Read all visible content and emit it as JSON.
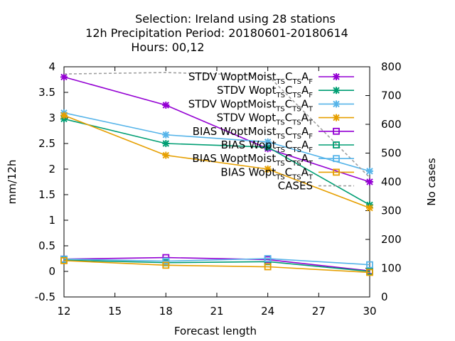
{
  "chart_data": {
    "type": "line",
    "title_lines": [
      "Selection: Ireland using    28 stations",
      "12h Precipitation    Period: 20180601-20180614",
      "Hours:  00,12"
    ],
    "xlabel": "Forecast length",
    "ylabel": "mm/12h",
    "y2label": "No cases",
    "xlim": [
      12,
      30
    ],
    "ylim": [
      -0.5,
      4
    ],
    "y2lim": [
      0,
      800
    ],
    "xticks": [
      "12",
      "15",
      "18",
      "21",
      "24",
      "27",
      "30"
    ],
    "yticks": [
      "-0.5",
      "0",
      "0.5",
      "1",
      "1.5",
      "2",
      "2.5",
      "3",
      "3.5",
      "4"
    ],
    "y2ticks": [
      "0",
      "100",
      "200",
      "300",
      "400",
      "500",
      "600",
      "700",
      "800"
    ],
    "legend_position": "top-right",
    "x": [
      12,
      18,
      24,
      30
    ],
    "series": [
      {
        "label_main": "STDV WoptMoist",
        "sub1": "TS",
        "mid": "C",
        "sub2": "TS",
        "tail": "A",
        "sub3": "F",
        "color": "#9400d3",
        "marker": "x",
        "dash": false,
        "axis": "y",
        "values": [
          3.8,
          3.25,
          2.4,
          1.75
        ]
      },
      {
        "label_main": "STDV Wopt",
        "sub1": "TS",
        "mid": "C",
        "sub2": "TS",
        "tail": "A",
        "sub3": "F",
        "color": "#009e73",
        "marker": "x",
        "dash": false,
        "axis": "y",
        "values": [
          2.98,
          2.5,
          2.43,
          1.3
        ]
      },
      {
        "label_main": "STDV WoptMoist",
        "sub1": "TS",
        "mid": "C",
        "sub2": "TS",
        "tail": "A",
        "sub3": "T",
        "color": "#56b4e9",
        "marker": "x",
        "dash": false,
        "axis": "y",
        "values": [
          3.1,
          2.67,
          2.53,
          1.96
        ]
      },
      {
        "label_main": "STDV Wopt",
        "sub1": "TS",
        "mid": "C",
        "sub2": "TS",
        "tail": "A",
        "sub3": "T",
        "color": "#e69f00",
        "marker": "x",
        "dash": false,
        "axis": "y",
        "values": [
          3.05,
          2.27,
          2.0,
          1.24
        ]
      },
      {
        "label_main": "BIAS WoptMoist",
        "sub1": "TS",
        "mid": "C",
        "sub2": "TS",
        "tail": "A",
        "sub3": "F",
        "color": "#9400d3",
        "marker": "square",
        "dash": false,
        "axis": "y",
        "values": [
          0.24,
          0.27,
          0.23,
          0.01
        ]
      },
      {
        "label_main": "BIAS Wopt",
        "sub1": "TS",
        "mid": "C",
        "sub2": "TS",
        "tail": "A",
        "sub3": "F",
        "color": "#009e73",
        "marker": "square",
        "dash": false,
        "axis": "y",
        "values": [
          0.22,
          0.17,
          0.19,
          0.0
        ]
      },
      {
        "label_main": "BIAS WoptMoist",
        "sub1": "TS",
        "mid": "C",
        "sub2": "TS",
        "tail": "A",
        "sub3": "T",
        "color": "#56b4e9",
        "marker": "square",
        "dash": false,
        "axis": "y",
        "values": [
          0.24,
          0.2,
          0.25,
          0.13
        ]
      },
      {
        "label_main": "BIAS Wopt",
        "sub1": "TS",
        "mid": "C",
        "sub2": "TS",
        "tail": "A",
        "sub3": "T",
        "color": "#e69f00",
        "marker": "square",
        "dash": false,
        "axis": "y",
        "values": [
          0.21,
          0.12,
          0.09,
          -0.02
        ]
      },
      {
        "label_main": "CASES",
        "color": "#a0a0a0",
        "marker": "none",
        "dash": true,
        "axis": "y2",
        "values": [
          775,
          780,
          770,
          415
        ]
      }
    ]
  }
}
